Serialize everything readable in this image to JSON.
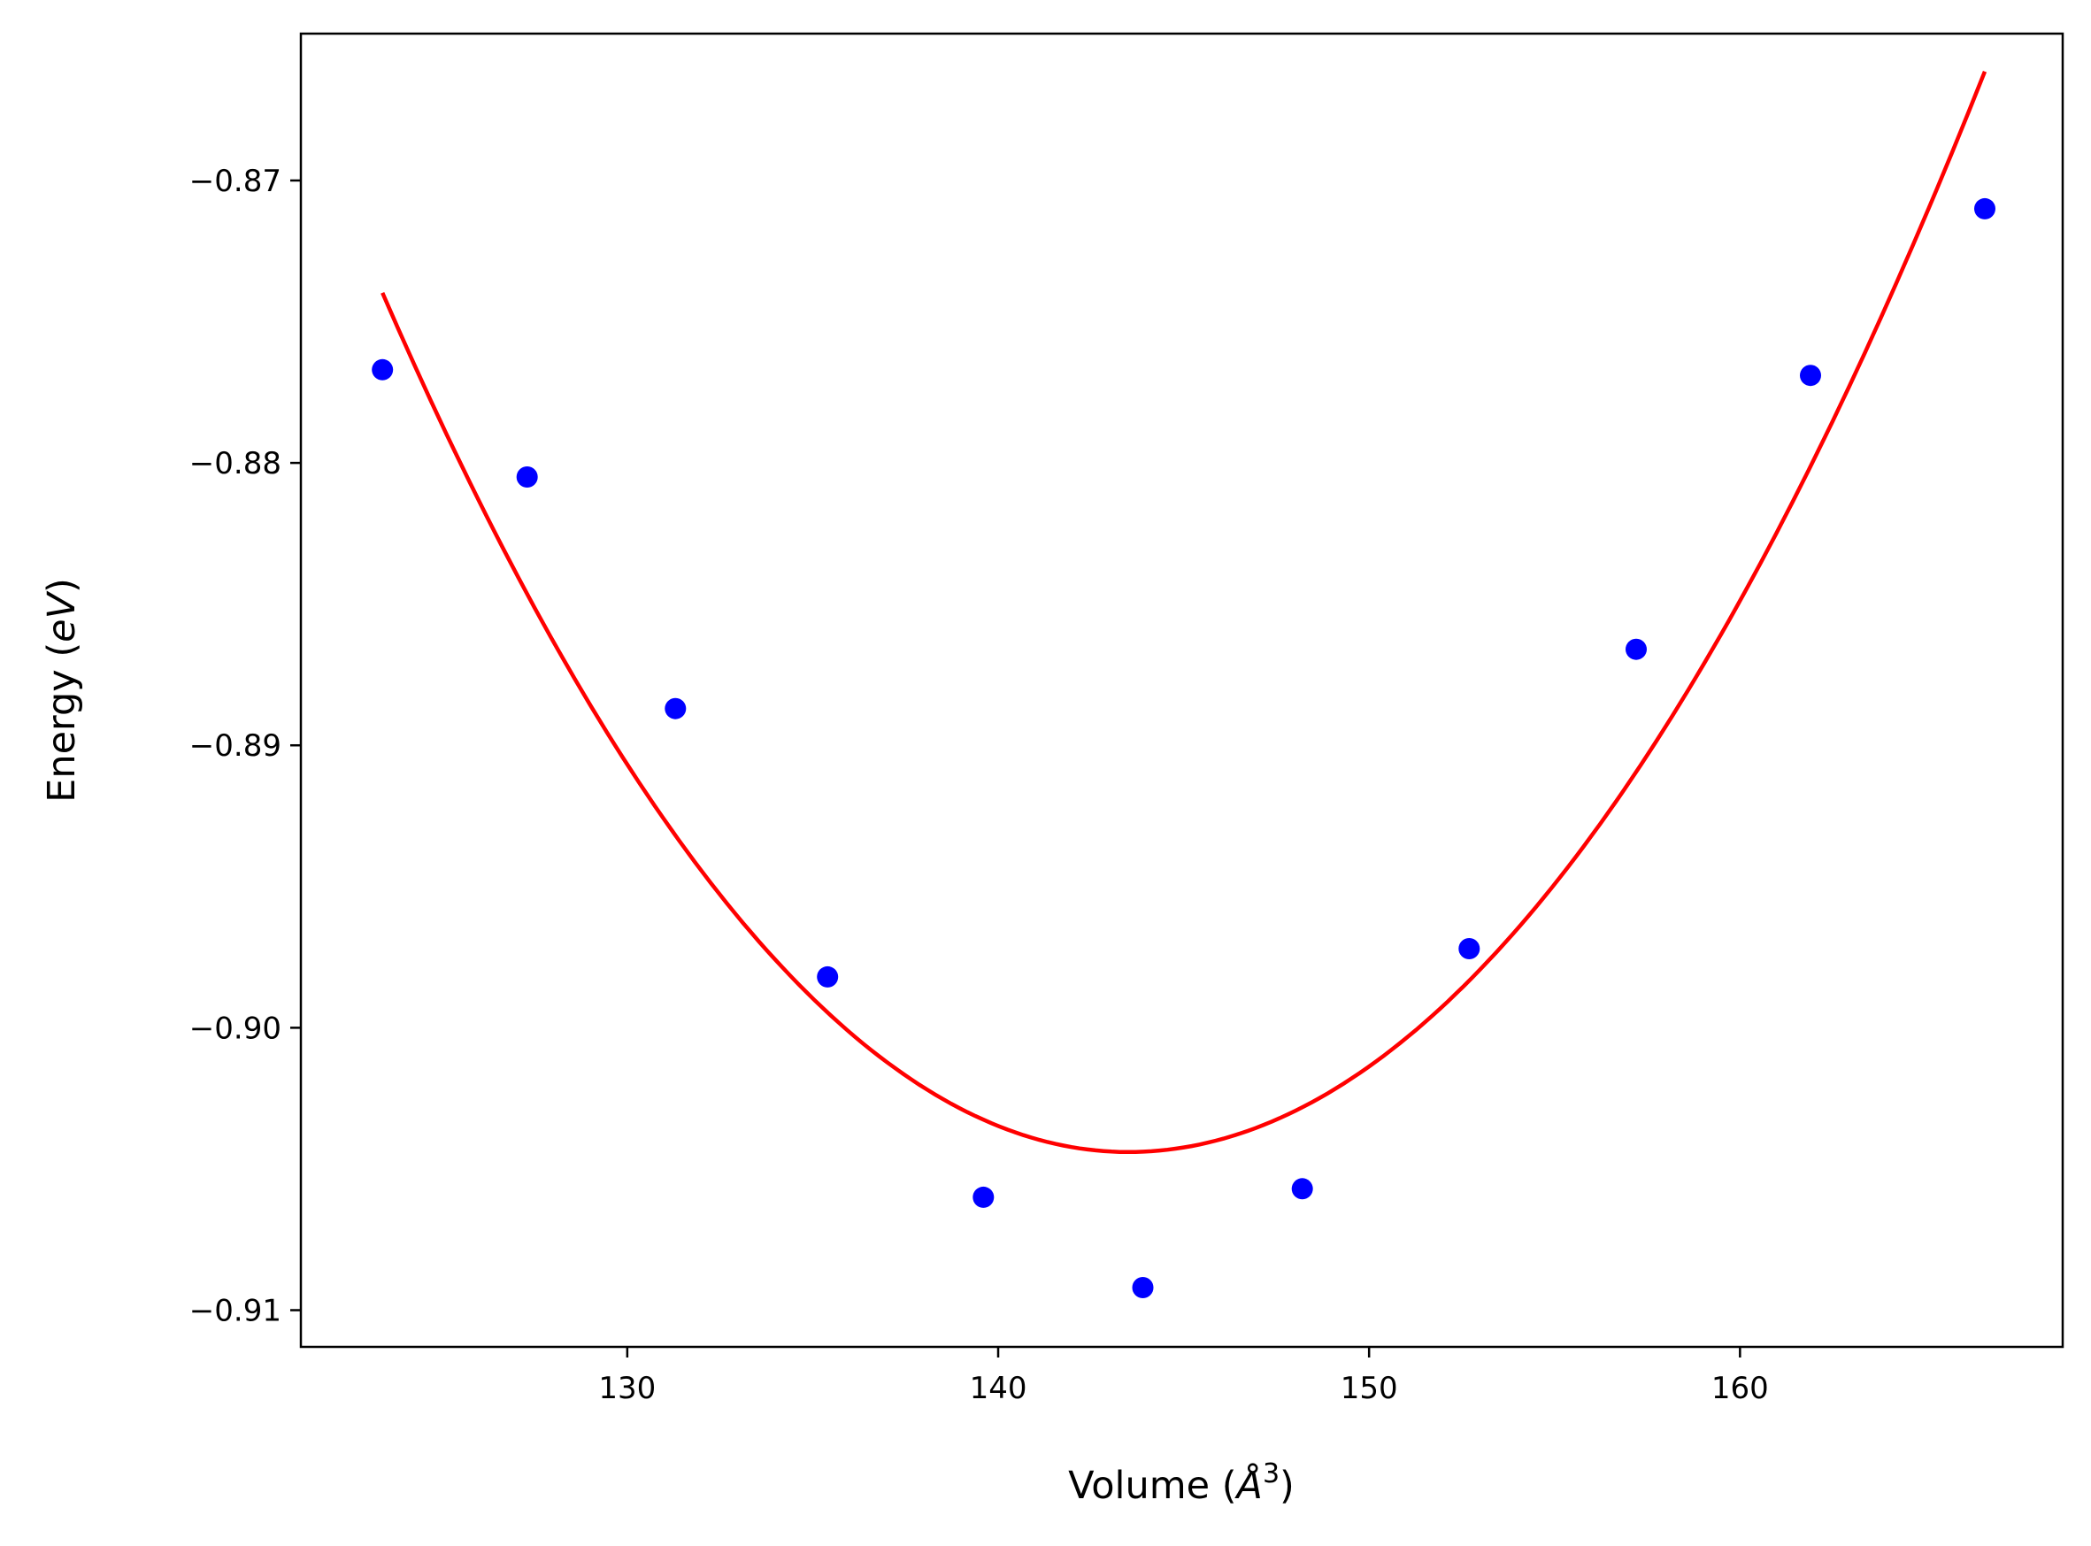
{
  "chart_data": {
    "type": "scatter",
    "title": "",
    "xlabel": {
      "main": "Volume (",
      "italic": "Å",
      "sup": "3",
      "end": ")"
    },
    "ylabel": {
      "main": "Energy (",
      "italic": "eV",
      "end": ")"
    },
    "xlim": [
      121.2,
      168.7
    ],
    "ylim": [
      -0.9113,
      -0.8648
    ],
    "xticks": [
      130,
      140,
      150,
      160
    ],
    "xtick_labels": [
      "130",
      "140",
      "150",
      "160"
    ],
    "yticks": [
      -0.87,
      -0.88,
      -0.89,
      -0.9,
      -0.91
    ],
    "ytick_labels": [
      "−0.87",
      "−0.88",
      "−0.89",
      "−0.90",
      "−0.91"
    ],
    "grid": false,
    "series": [
      {
        "kind": "scatter",
        "color": "#0000ff",
        "x": [
          123.4,
          127.3,
          131.3,
          135.4,
          139.6,
          143.9,
          148.2,
          152.7,
          157.2,
          161.9,
          166.6
        ],
        "y": [
          -0.8767,
          -0.8805,
          -0.8887,
          -0.8982,
          -0.906,
          -0.9092,
          -0.9057,
          -0.8972,
          -0.8866,
          -0.8769,
          -0.871
        ]
      },
      {
        "kind": "fit-line",
        "color": "#ff0000",
        "x_range": [
          123.4,
          166.6
        ],
        "vertex": [
          143.5,
          -0.9044
        ],
        "coeff_left": 7.53e-05,
        "coeff_right": 7.17e-05
      }
    ]
  }
}
